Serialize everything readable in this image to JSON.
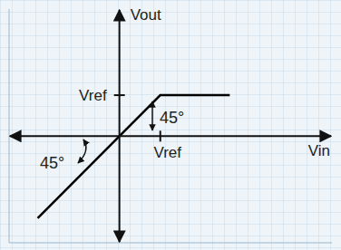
{
  "chart_data": {
    "type": "line",
    "x": [
      -2,
      1,
      2.7
    ],
    "values": [
      -2,
      1,
      1
    ],
    "xlim": [
      -2.7,
      5.2
    ],
    "ylim": [
      -2.6,
      3.1
    ],
    "xticks": [
      {
        "value": 1,
        "label": "Vref"
      }
    ],
    "yticks": [
      {
        "value": 1,
        "label": "Vref"
      }
    ],
    "x_label": "Vin",
    "y_label": "Vout",
    "annotations": [
      "45°",
      "45°"
    ],
    "color": "#000000"
  }
}
